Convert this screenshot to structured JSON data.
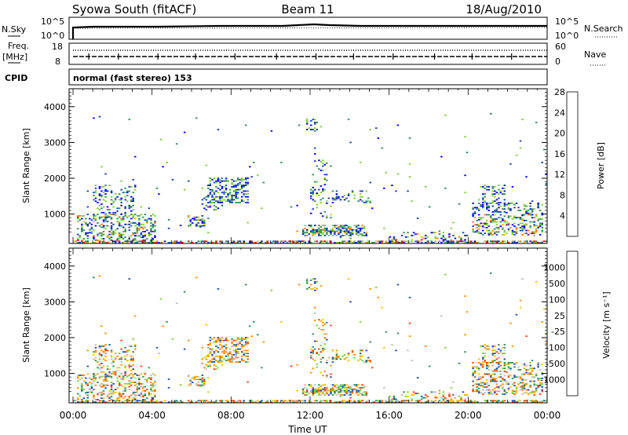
{
  "header": {
    "station": "Syowa South (fitACF)",
    "beam": "Beam 11",
    "date": "18/Aug/2010"
  },
  "panels": {
    "nsky": {
      "left_label": "N.Sky",
      "right_label": "N.Search",
      "ytick_top": "10^5",
      "ytick_bottom": "10^0",
      "right_tick_top": "10^5",
      "right_tick_bottom": "10^0"
    },
    "freq": {
      "left_label_1": "Freq.",
      "left_label_2": "[MHz]",
      "right_label": "Nave",
      "ytick_top": "18",
      "ytick_bottom": "8",
      "right_tick_top": "60",
      "right_tick_bottom": "0"
    },
    "cpid": {
      "left_label": "CPID",
      "program": "normal (fast stereo) 153"
    }
  },
  "chart_data": [
    {
      "type": "heatmap",
      "name": "Power",
      "ylabel": "Slant Range [km]",
      "xlabel": "",
      "yticks": [
        "1000",
        "2000",
        "3000",
        "4000"
      ],
      "ylim": [
        180,
        4500
      ],
      "colorbar": {
        "label": "Power [dB]",
        "ticks": [
          "4",
          "8",
          "12",
          "16",
          "20",
          "24",
          "28"
        ],
        "colors": [
          "#0000ff",
          "#1a3ea8",
          "#2e8b57",
          "#7ccd3a",
          "#f5b800",
          "#ff7f00",
          "#ff0000"
        ]
      }
    },
    {
      "type": "heatmap",
      "name": "Velocity",
      "ylabel": "Slant Range [km]",
      "xlabel": "Time UT",
      "yticks": [
        "1000",
        "2000",
        "3000",
        "4000"
      ],
      "ylim": [
        180,
        4500
      ],
      "colorbar": {
        "label": "Velocity [m s⁻¹]",
        "ticks": [
          "1000",
          "500",
          "100",
          "25",
          "-25",
          "-100",
          "-500",
          "-1000"
        ],
        "colors": [
          "#1030d0",
          "#1a4aa8",
          "#2e8b57",
          "#7ccd3a",
          "#bdbdbd",
          "#f5c000",
          "#ff8c00",
          "#ff4000",
          "#ff0000"
        ]
      },
      "xticks": [
        "00:00",
        "04:00",
        "08:00",
        "12:00",
        "16:00",
        "20:00",
        "00:00"
      ]
    }
  ]
}
